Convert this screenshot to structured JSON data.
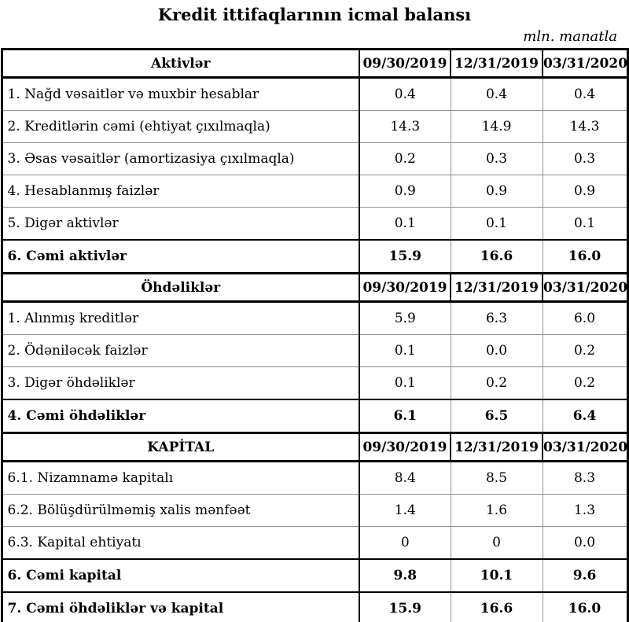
{
  "title": "Kredit ittifaqlarının icmal balansı",
  "unit_note": "mln. manatla",
  "columns": [
    "09/30/2019",
    "12/31/2019",
    "03/31/2020"
  ],
  "sections": [
    {
      "header": "Aktivlər",
      "rows": [
        {
          "label": "1. Nağd vəsaitlər və muxbir hesablar",
          "values": [
            "0.4",
            "0.4",
            "0.4"
          ],
          "bold": false
        },
        {
          "label": "2. Kreditlərin cəmi (ehtiyat çıxılmaqla)",
          "values": [
            "14.3",
            "14.9",
            "14.3"
          ],
          "bold": false
        },
        {
          "label": "3. Əsas vəsaitlər (amortizasiya çıxılmaqla)",
          "values": [
            "0.2",
            "0.3",
            "0.3"
          ],
          "bold": false
        },
        {
          "label": "4. Hesablanmış faizlər",
          "values": [
            "0.9",
            "0.9",
            "0.9"
          ],
          "bold": false
        },
        {
          "label": "5. Digər aktivlər",
          "values": [
            "0.1",
            "0.1",
            "0.1"
          ],
          "bold": false
        },
        {
          "label": "6. Cəmi aktivlər",
          "values": [
            "15.9",
            "16.6",
            "16.0"
          ],
          "bold": true
        }
      ]
    },
    {
      "header": "Öhdəliklər",
      "rows": [
        {
          "label": "1. Alınmış kreditlər",
          "values": [
            "5.9",
            "6.3",
            "6.0"
          ],
          "bold": false
        },
        {
          "label": "2. Ödəniləcək faizlər",
          "values": [
            "0.1",
            "0.0",
            "0.2"
          ],
          "bold": false
        },
        {
          "label": "3. Digər öhdəliklər",
          "values": [
            "0.1",
            "0.2",
            "0.2"
          ],
          "bold": false
        },
        {
          "label": "4. Cəmi öhdəliklər",
          "values": [
            "6.1",
            "6.5",
            "6.4"
          ],
          "bold": true
        }
      ]
    },
    {
      "header": "KAPİTAL",
      "rows": [
        {
          "label": "6.1. Nizamnamə kapitalı",
          "values": [
            "8.4",
            "8.5",
            "8.3"
          ],
          "bold": false
        },
        {
          "label": "6.2. Bölüşdürülməmiş xalis mənfəət",
          "values": [
            "1.4",
            "1.6",
            "1.3"
          ],
          "bold": false
        },
        {
          "label": "6.3. Kapital ehtiyatı",
          "values": [
            "0",
            "0",
            "0.0"
          ],
          "bold": false
        },
        {
          "label": "6. Cəmi kapital",
          "values": [
            "9.8",
            "10.1",
            "9.6"
          ],
          "bold": true
        },
        {
          "label": "7. Cəmi öhdəliklər və kapital",
          "values": [
            "15.9",
            "16.6",
            "16.0"
          ],
          "bold": true
        }
      ]
    }
  ]
}
